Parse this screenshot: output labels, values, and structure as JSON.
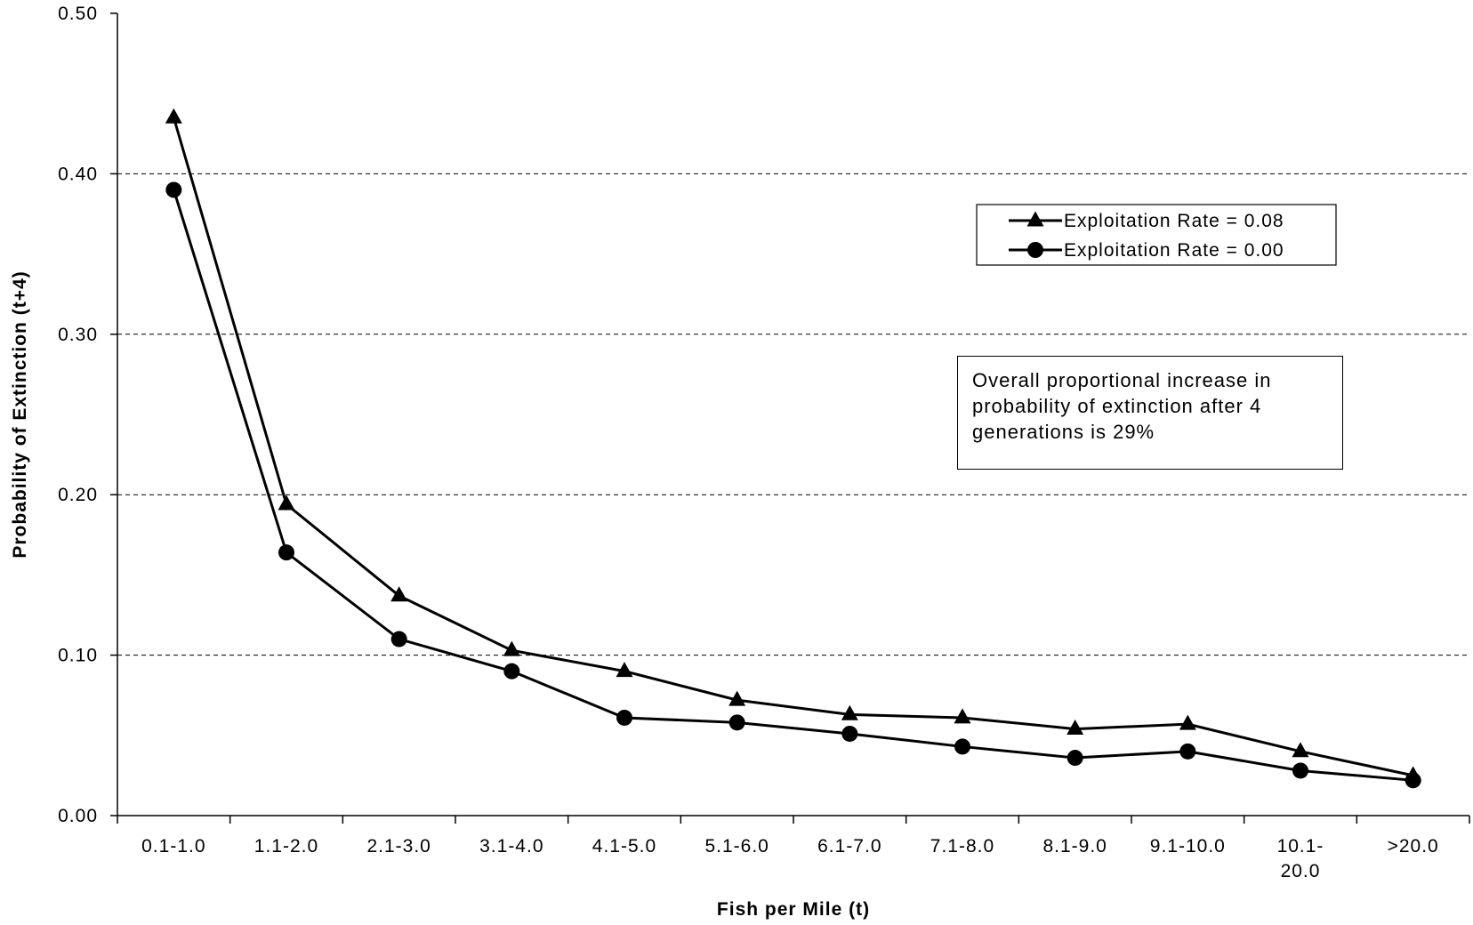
{
  "chart_data": {
    "type": "line",
    "title": "",
    "xlabel": "Fish per Mile (t)",
    "ylabel": "Probability of Extinction (t+4)",
    "ylim": [
      0,
      0.5
    ],
    "yticks": [
      "0.00",
      "0.10",
      "0.20",
      "0.30",
      "0.40",
      "0.50"
    ],
    "ytick_values": [
      0,
      0.1,
      0.2,
      0.3,
      0.4,
      0.5
    ],
    "grid": "horizontal dashed",
    "legend_position": "top-right",
    "categories": [
      [
        "0.1-1.0"
      ],
      [
        "1.1-2.0"
      ],
      [
        "2.1-3.0"
      ],
      [
        "3.1-4.0"
      ],
      [
        "4.1-5.0"
      ],
      [
        "5.1-6.0"
      ],
      [
        "6.1-7.0"
      ],
      [
        "7.1-8.0"
      ],
      [
        "8.1-9.0"
      ],
      [
        "9.1-10.0"
      ],
      [
        "10.1-",
        "20.0"
      ],
      [
        ">20.0"
      ]
    ],
    "series": [
      {
        "name": "Exploitation Rate = 0.08",
        "marker": "triangle",
        "color": "#000000",
        "values": [
          0.435,
          0.194,
          0.137,
          0.103,
          0.09,
          0.072,
          0.063,
          0.061,
          0.054,
          0.057,
          0.04,
          0.025
        ]
      },
      {
        "name": "Exploitation Rate = 0.00",
        "marker": "circle",
        "color": "#000000",
        "values": [
          0.39,
          0.164,
          0.11,
          0.09,
          0.061,
          0.058,
          0.051,
          0.043,
          0.036,
          0.04,
          0.028,
          0.022
        ]
      }
    ],
    "annotation": {
      "lines": [
        "Overall proportional increase in",
        "probability of extinction after 4",
        "generations is 29%"
      ]
    }
  }
}
